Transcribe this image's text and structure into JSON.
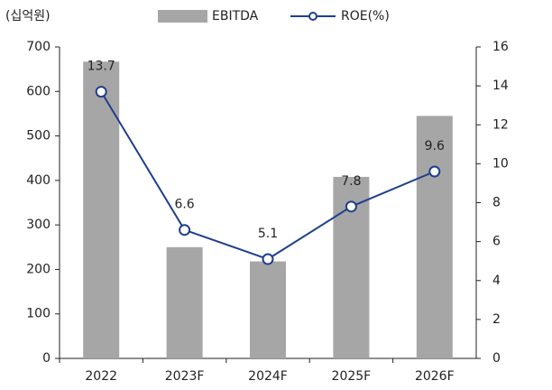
{
  "chart_data": {
    "type": "bar",
    "unit_label": "(십억원)",
    "categories": [
      "2022",
      "2023F",
      "2024F",
      "2025F",
      "2026F"
    ],
    "series": [
      {
        "name": "EBITDA",
        "type": "bar",
        "color": "#a6a6a6",
        "values": [
          667,
          250,
          218,
          408,
          545
        ]
      },
      {
        "name": "ROE(%)",
        "type": "line",
        "axis": "y2",
        "color": "#1f3f8c",
        "values": [
          13.7,
          6.6,
          5.1,
          7.8,
          9.6
        ]
      }
    ],
    "ylim": [
      0,
      700
    ],
    "yticks": [
      0,
      100,
      200,
      300,
      400,
      500,
      600,
      700
    ],
    "y2lim": [
      0,
      16
    ],
    "y2ticks": [
      0,
      2,
      4,
      6,
      8,
      10,
      12,
      14,
      16
    ],
    "grid": false
  }
}
